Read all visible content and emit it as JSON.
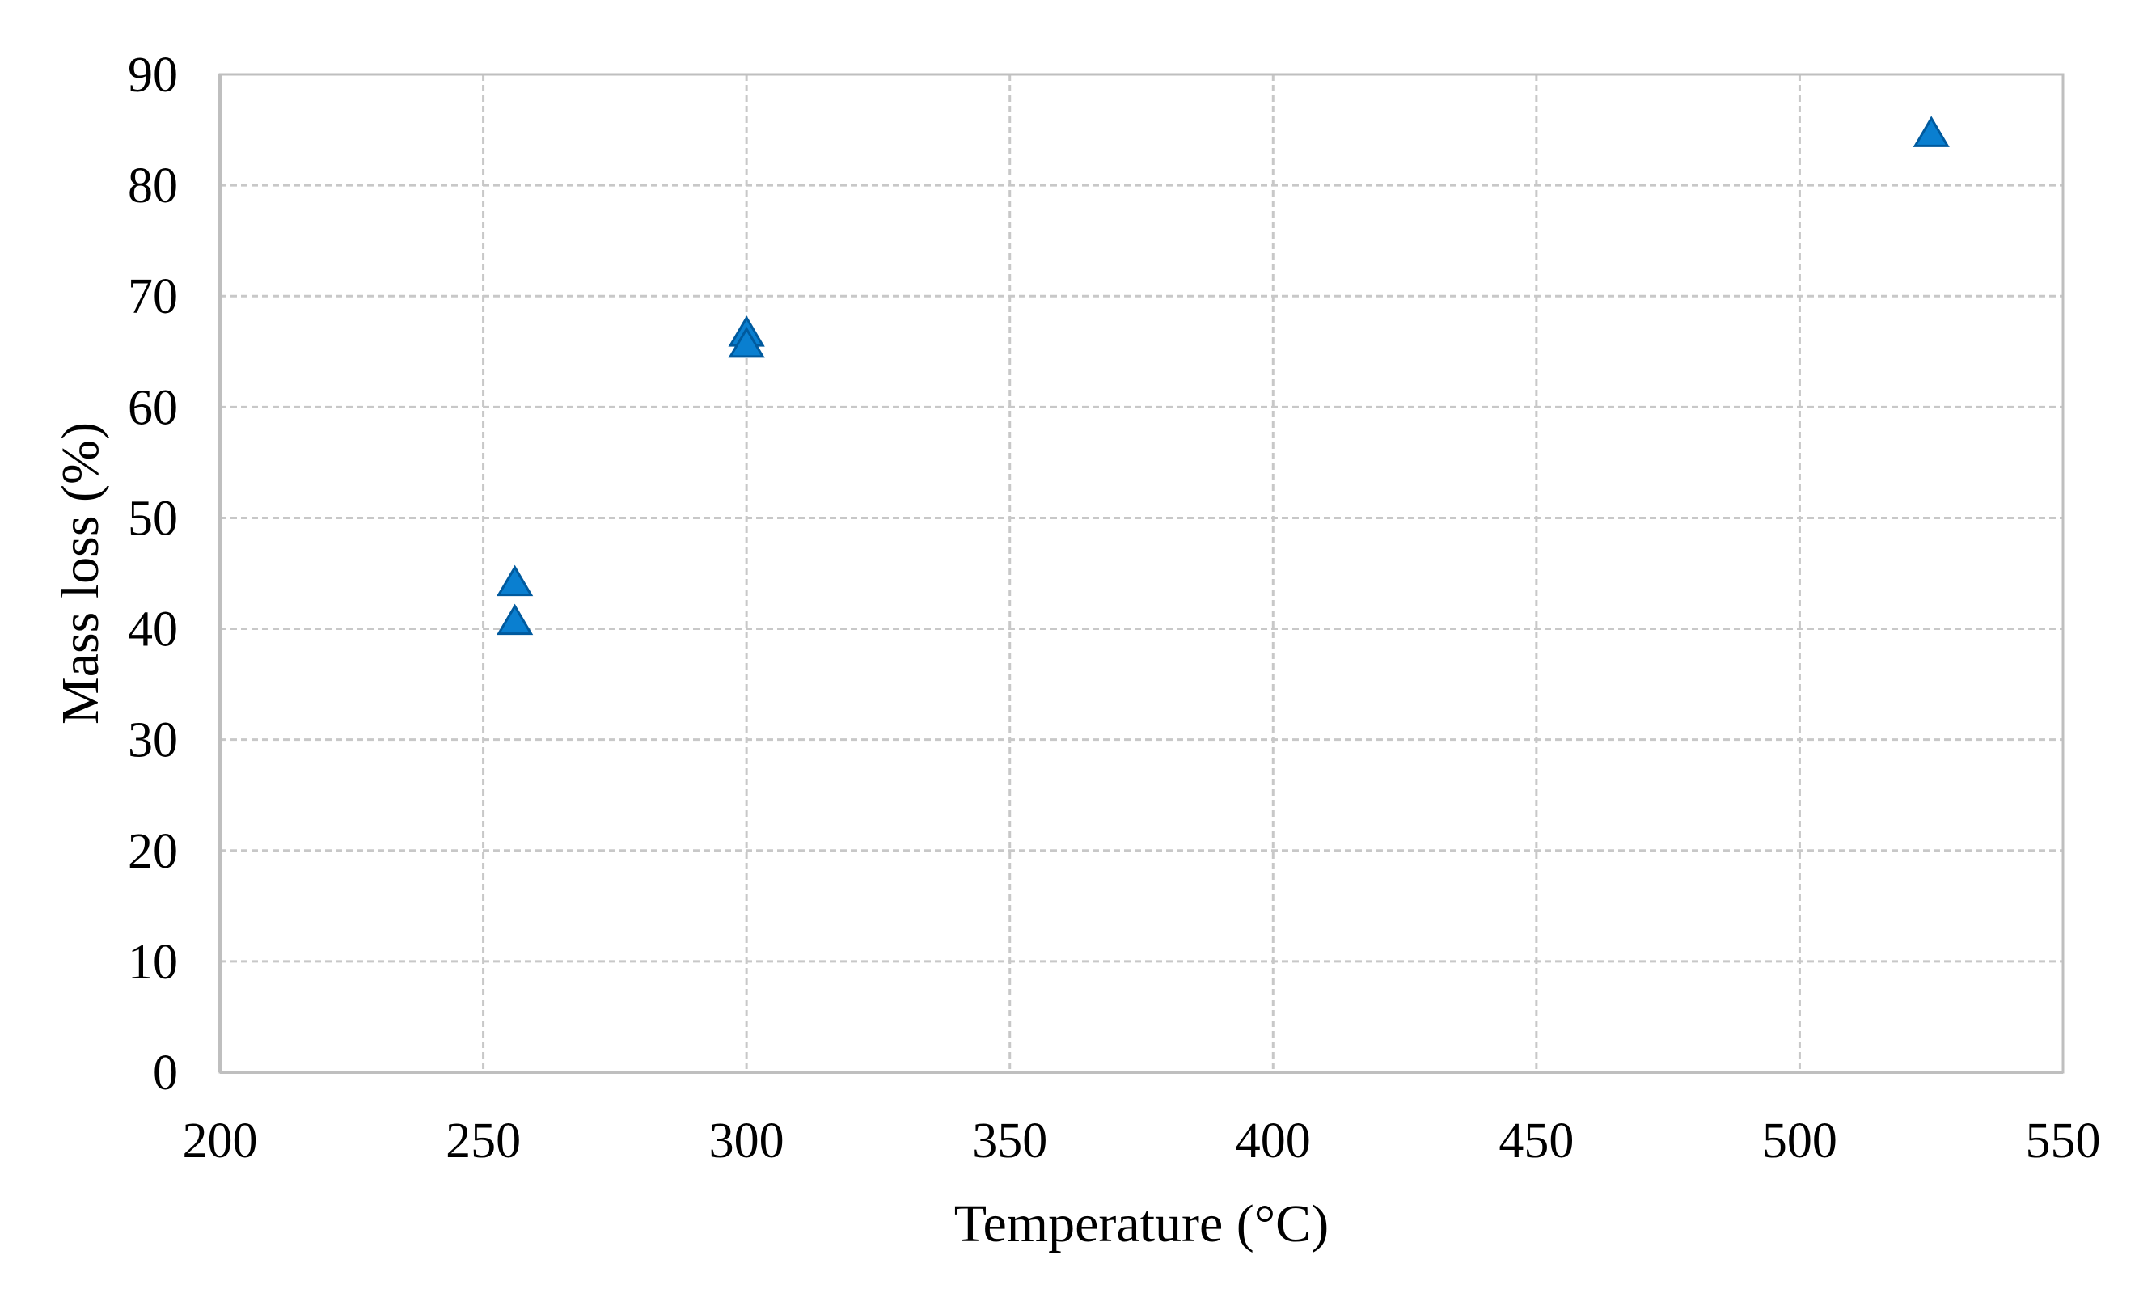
{
  "chart_data": {
    "type": "scatter",
    "title": "",
    "xlabel": "Temperature (°C)",
    "ylabel": "Mass loss (%)",
    "xlim": [
      200,
      550
    ],
    "ylim": [
      0,
      90
    ],
    "x_ticks": [
      "200",
      "250",
      "300",
      "350",
      "400",
      "450",
      "500",
      "550"
    ],
    "y_ticks": [
      "0",
      "10",
      "20",
      "30",
      "40",
      "50",
      "60",
      "70",
      "80",
      "90"
    ],
    "grid": true,
    "legend": "none",
    "marker": "triangle",
    "series": [
      {
        "color": "#0a7fd0",
        "points": [
          {
            "x": 256,
            "y": 44
          },
          {
            "x": 256,
            "y": 40.5
          },
          {
            "x": 300,
            "y": 66.5
          },
          {
            "x": 300,
            "y": 65.5
          },
          {
            "x": 525,
            "y": 84.5
          }
        ]
      }
    ]
  }
}
